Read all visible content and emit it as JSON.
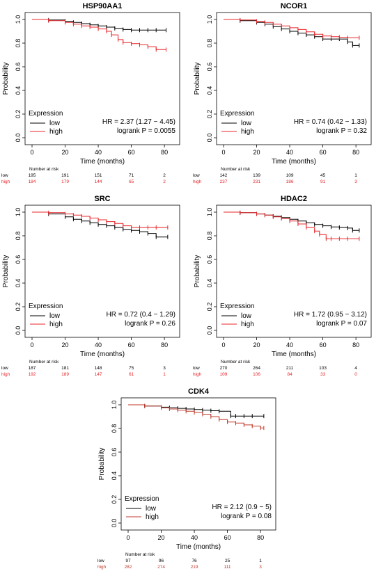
{
  "common": {
    "ylabel": "Probability",
    "xlabel": "Time (months)",
    "legend_title": "Expression",
    "risk_header": "Number at risk",
    "colors": {
      "low": "#000000",
      "high": "#e8262a",
      "high_alt": "#c0392b"
    }
  },
  "chart_data": [
    {
      "type": "line",
      "title": "HSP90AA1",
      "xlim": [
        0,
        85
      ],
      "ylim": [
        0,
        1
      ],
      "xticks": [
        "0",
        "20",
        "40",
        "60",
        "80"
      ],
      "yticks": [
        "0.0",
        "0.2",
        "0.4",
        "0.6",
        "0.8",
        "1.0"
      ],
      "hr_text": "HR = 2.37 (1.27 − 4.45)",
      "p_text": "logrank P = 0.0055",
      "high_color": "#e8262a",
      "series": [
        {
          "name": "low",
          "color": "#000000",
          "x": [
            0,
            10,
            20,
            25,
            30,
            35,
            40,
            45,
            50,
            55,
            60,
            65,
            70,
            75,
            81
          ],
          "y": [
            1.0,
            0.995,
            0.985,
            0.975,
            0.965,
            0.955,
            0.945,
            0.935,
            0.925,
            0.915,
            0.91,
            0.91,
            0.91,
            0.91,
            0.91
          ]
        },
        {
          "name": "high",
          "color": "#e8262a",
          "x": [
            0,
            10,
            20,
            25,
            30,
            35,
            40,
            45,
            48,
            52,
            55,
            60,
            65,
            70,
            75,
            81
          ],
          "y": [
            1.0,
            0.99,
            0.975,
            0.96,
            0.945,
            0.935,
            0.92,
            0.9,
            0.87,
            0.83,
            0.805,
            0.795,
            0.785,
            0.77,
            0.745,
            0.745
          ]
        }
      ],
      "risk": {
        "times": [
          0,
          20,
          40,
          60,
          80
        ],
        "low": [
          "195",
          "191",
          "151",
          "71",
          "2"
        ],
        "high": [
          "184",
          "179",
          "144",
          "65",
          "2"
        ]
      }
    },
    {
      "type": "line",
      "title": "NCOR1",
      "xlim": [
        0,
        85
      ],
      "ylim": [
        0,
        1
      ],
      "xticks": [
        "0",
        "20",
        "40",
        "60",
        "80"
      ],
      "yticks": [
        "0.0",
        "0.2",
        "0.4",
        "0.6",
        "0.8",
        "1.0"
      ],
      "hr_text": "HR = 0.74 (0.42 − 1.33)",
      "p_text": "logrank P = 0.32",
      "high_color": "#e8262a",
      "series": [
        {
          "name": "low",
          "color": "#000000",
          "x": [
            0,
            10,
            20,
            25,
            30,
            35,
            40,
            45,
            50,
            55,
            60,
            65,
            70,
            75,
            78,
            82
          ],
          "y": [
            1.0,
            0.99,
            0.975,
            0.96,
            0.94,
            0.92,
            0.9,
            0.885,
            0.87,
            0.855,
            0.835,
            0.835,
            0.835,
            0.81,
            0.78,
            0.78
          ]
        },
        {
          "name": "high",
          "color": "#e8262a",
          "x": [
            0,
            10,
            20,
            25,
            30,
            35,
            40,
            45,
            50,
            55,
            60,
            65,
            70,
            75,
            82
          ],
          "y": [
            1.0,
            0.995,
            0.985,
            0.975,
            0.96,
            0.945,
            0.93,
            0.915,
            0.895,
            0.875,
            0.86,
            0.855,
            0.85,
            0.845,
            0.845
          ]
        }
      ],
      "risk": {
        "times": [
          0,
          20,
          40,
          60,
          80
        ],
        "low": [
          "142",
          "139",
          "109",
          "45",
          "1"
        ],
        "high": [
          "237",
          "231",
          "186",
          "91",
          "3"
        ]
      }
    },
    {
      "type": "line",
      "title": "SRC",
      "xlim": [
        0,
        85
      ],
      "ylim": [
        0,
        1
      ],
      "xticks": [
        "0",
        "20",
        "40",
        "60",
        "80"
      ],
      "yticks": [
        "0.0",
        "0.2",
        "0.4",
        "0.6",
        "0.8",
        "1.0"
      ],
      "hr_text": "HR = 0.72 (0.4 − 1.29)",
      "p_text": "logrank P = 0.26",
      "high_color": "#e8262a",
      "series": [
        {
          "name": "low",
          "color": "#000000",
          "x": [
            0,
            10,
            20,
            25,
            30,
            35,
            40,
            45,
            50,
            55,
            60,
            65,
            70,
            75,
            82
          ],
          "y": [
            1.0,
            0.985,
            0.96,
            0.94,
            0.925,
            0.91,
            0.895,
            0.885,
            0.87,
            0.855,
            0.845,
            0.835,
            0.82,
            0.79,
            0.79
          ]
        },
        {
          "name": "high",
          "color": "#e8262a",
          "x": [
            0,
            10,
            20,
            25,
            30,
            35,
            40,
            45,
            50,
            55,
            60,
            65,
            70,
            75,
            82
          ],
          "y": [
            1.0,
            0.995,
            0.985,
            0.975,
            0.965,
            0.95,
            0.935,
            0.92,
            0.905,
            0.885,
            0.87,
            0.87,
            0.87,
            0.87,
            0.87
          ]
        }
      ],
      "risk": {
        "times": [
          0,
          20,
          40,
          60,
          80
        ],
        "low": [
          "187",
          "181",
          "148",
          "75",
          "3"
        ],
        "high": [
          "192",
          "189",
          "147",
          "61",
          "1"
        ]
      }
    },
    {
      "type": "line",
      "title": "HDAC2",
      "xlim": [
        0,
        85
      ],
      "ylim": [
        0,
        1
      ],
      "xticks": [
        "0",
        "20",
        "40",
        "60",
        "80"
      ],
      "yticks": [
        "0.0",
        "0.2",
        "0.4",
        "0.6",
        "0.8",
        "1.0"
      ],
      "hr_text": "HR = 1.72 (0.95 − 3.12)",
      "p_text": "logrank P = 0.07",
      "high_color": "#e8262a",
      "series": [
        {
          "name": "low",
          "color": "#000000",
          "x": [
            0,
            10,
            20,
            25,
            30,
            35,
            40,
            45,
            50,
            55,
            60,
            65,
            70,
            75,
            78,
            82
          ],
          "y": [
            1.0,
            0.995,
            0.985,
            0.975,
            0.965,
            0.955,
            0.94,
            0.925,
            0.91,
            0.895,
            0.885,
            0.875,
            0.87,
            0.865,
            0.845,
            0.845
          ]
        },
        {
          "name": "high",
          "color": "#e8262a",
          "x": [
            0,
            10,
            20,
            25,
            30,
            35,
            40,
            45,
            50,
            55,
            58,
            62,
            65,
            70,
            75,
            82
          ],
          "y": [
            1.0,
            0.995,
            0.985,
            0.975,
            0.96,
            0.945,
            0.925,
            0.9,
            0.87,
            0.84,
            0.81,
            0.775,
            0.775,
            0.775,
            0.775,
            0.775
          ]
        }
      ],
      "risk": {
        "times": [
          0,
          20,
          40,
          60,
          80
        ],
        "low": [
          "270",
          "264",
          "211",
          "103",
          "4"
        ],
        "high": [
          "109",
          "106",
          "84",
          "33",
          "0"
        ]
      }
    },
    {
      "type": "line",
      "title": "CDK4",
      "xlim": [
        0,
        85
      ],
      "ylim": [
        0,
        1
      ],
      "xticks": [
        "0",
        "20",
        "40",
        "60",
        "80"
      ],
      "yticks": [
        "0.0",
        "0.2",
        "0.4",
        "0.6",
        "0.8",
        "1.0"
      ],
      "hr_text": "HR = 2.12 (0.9 − 5)",
      "p_text": "logrank P = 0.08",
      "high_color": "#c0392b",
      "series": [
        {
          "name": "low",
          "color": "#000000",
          "x": [
            0,
            10,
            20,
            25,
            30,
            35,
            40,
            45,
            50,
            55,
            62,
            65,
            70,
            75,
            82
          ],
          "y": [
            1.0,
            0.99,
            0.98,
            0.975,
            0.97,
            0.965,
            0.96,
            0.955,
            0.95,
            0.945,
            0.905,
            0.905,
            0.905,
            0.905,
            0.905
          ]
        },
        {
          "name": "high",
          "color": "#c0392b",
          "x": [
            0,
            10,
            20,
            25,
            30,
            35,
            40,
            45,
            50,
            55,
            60,
            65,
            70,
            75,
            80,
            82
          ],
          "y": [
            1.0,
            0.99,
            0.975,
            0.965,
            0.955,
            0.945,
            0.935,
            0.92,
            0.9,
            0.875,
            0.855,
            0.845,
            0.83,
            0.82,
            0.805,
            0.805
          ]
        }
      ],
      "risk": {
        "times": [
          0,
          20,
          40,
          60,
          80
        ],
        "low": [
          "97",
          "96",
          "76",
          "25",
          "1"
        ],
        "high": [
          "282",
          "274",
          "219",
          "111",
          "3"
        ]
      }
    }
  ]
}
